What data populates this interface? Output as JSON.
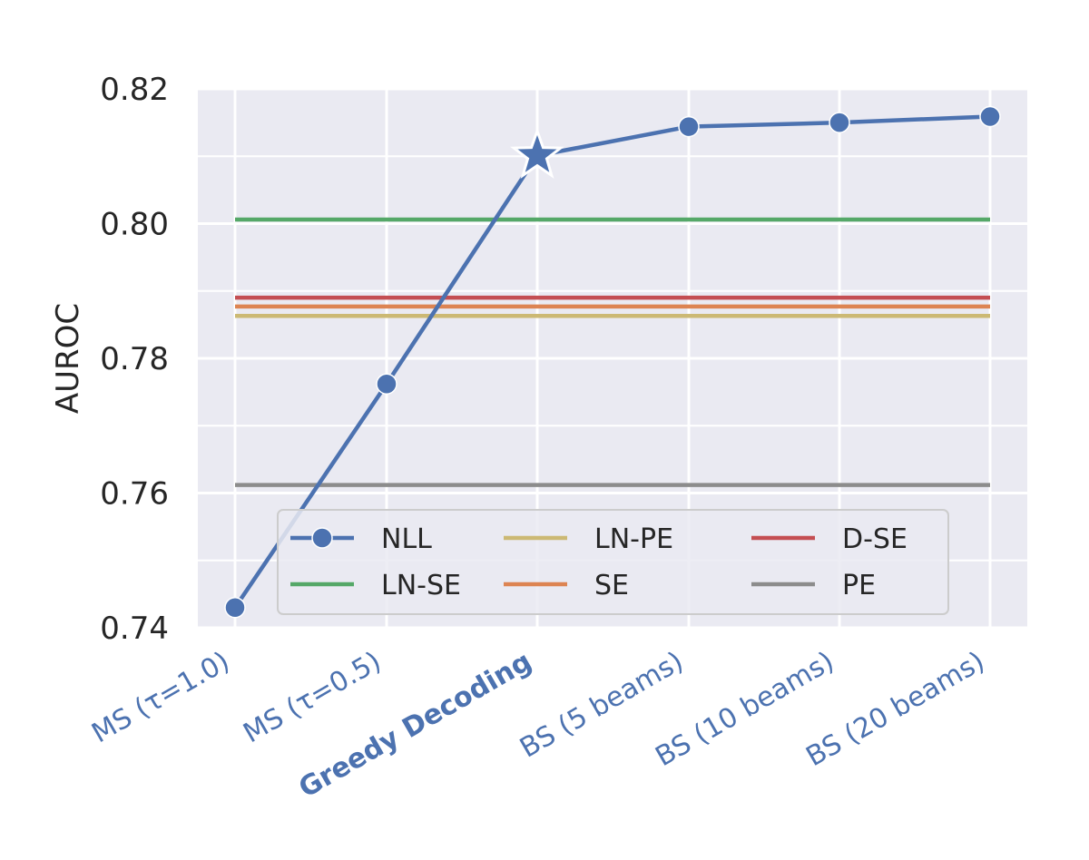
{
  "chart_data": {
    "type": "line",
    "xlabel": "",
    "ylabel": "AUROC",
    "ylim": [
      0.74,
      0.82
    ],
    "yticks": [
      "0.74",
      "0.76",
      "0.78",
      "0.80",
      "0.82"
    ],
    "categories": [
      "MS (τ=1.0)",
      "MS (τ=0.5)",
      "Greedy Decoding",
      "BS (5 beams)",
      "BS (10 beams)",
      "BS (20 beams)"
    ],
    "highlighted_category": "Greedy Decoding",
    "grid": true,
    "legend_position": "lower-center",
    "series": [
      {
        "name": "NLL",
        "kind": "line-markers",
        "color": "#4c72b0",
        "values": [
          0.743,
          0.7762,
          0.8101,
          0.8144,
          0.815,
          0.8159
        ],
        "star_marker_index": 2
      },
      {
        "name": "LN-SE",
        "kind": "hline",
        "color": "#55a868",
        "value": 0.8006
      },
      {
        "name": "LN-PE",
        "kind": "hline",
        "color": "#ccb974",
        "value": 0.7863
      },
      {
        "name": "SE",
        "kind": "hline",
        "color": "#dd8452",
        "value": 0.7877
      },
      {
        "name": "D-SE",
        "kind": "hline",
        "color": "#c44e52",
        "value": 0.789
      },
      {
        "name": "PE",
        "kind": "hline",
        "color": "#8c8c8c",
        "value": 0.7612
      }
    ],
    "legend_order": [
      "NLL",
      "LN-SE",
      "LN-PE",
      "SE",
      "D-SE",
      "PE"
    ],
    "legend_columns": 3
  }
}
